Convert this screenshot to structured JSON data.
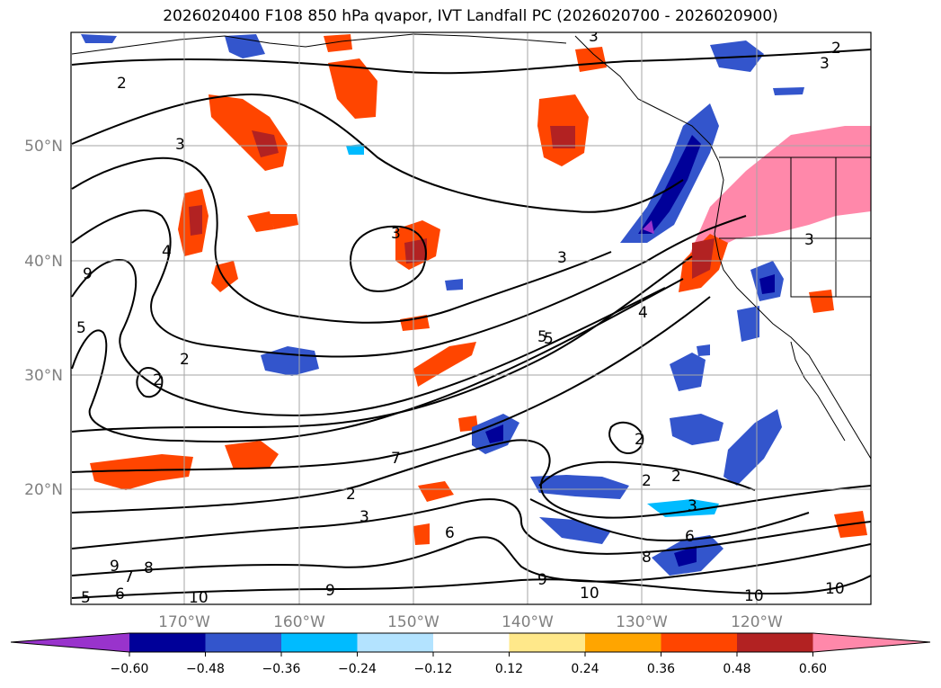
{
  "title": "2026020400 F108 850 hPa qvapor, IVT Landfall PC (2026020700 - 2026020900)",
  "latitude_labels": [
    "50°N",
    "40°N",
    "30°N",
    "20°N"
  ],
  "longitude_labels": [
    "170°W",
    "160°W",
    "150°W",
    "140°W",
    "130°W",
    "120°W"
  ],
  "colorbar": {
    "colors": [
      "#9933cc",
      "#000099",
      "#3355cc",
      "#00bbff",
      "#b3e3ff",
      "#ffffff",
      "#ffe88a",
      "#ffa500",
      "#ff4500",
      "#b22222",
      "#ff88aa"
    ],
    "tick_labels": [
      "−0.60",
      "−0.48",
      "−0.36",
      "−0.24",
      "−0.12",
      "0.12",
      "0.24",
      "0.36",
      "0.48",
      "0.60"
    ]
  },
  "contour_labels": [
    "2",
    "3",
    "2",
    "3",
    "4",
    "5",
    "9",
    "5",
    "2",
    "2",
    "3",
    "3",
    "4",
    "5",
    "7",
    "2",
    "2",
    "2",
    "3",
    "6",
    "6",
    "8",
    "9",
    "10",
    "10",
    "10",
    "9",
    "9",
    "8",
    "7",
    "6",
    "5",
    "10",
    "3",
    "3",
    "2",
    "3"
  ],
  "colors": {
    "land_outline": "#000000",
    "grid": "#a6a6a6"
  }
}
